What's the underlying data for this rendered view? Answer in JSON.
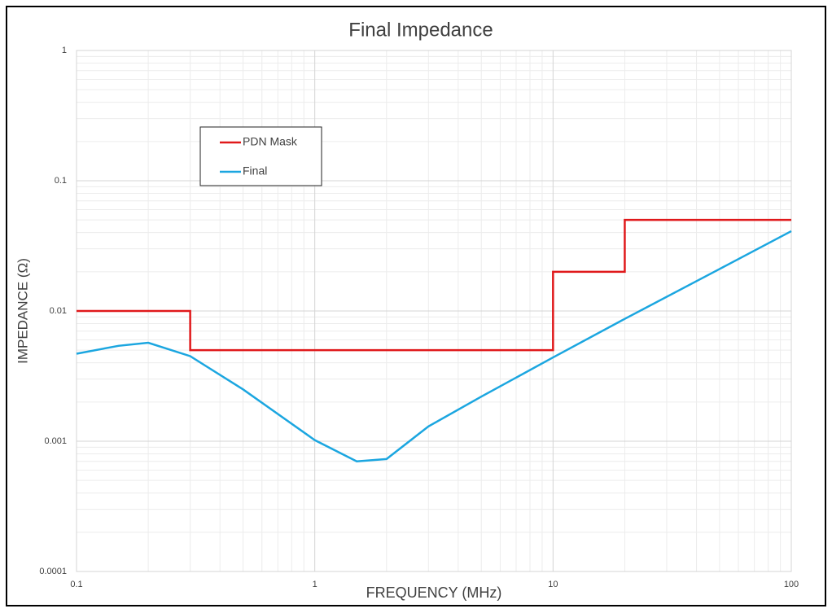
{
  "chart_data": {
    "type": "line",
    "title": "Final Impedance",
    "x_label": "FREQUENCY (MHz)",
    "y_label": "IMPEDANCE (Ω)",
    "x_scale": "log",
    "y_scale": "log",
    "xlim": [
      0.1,
      100
    ],
    "xticks": [
      0.1,
      1,
      10,
      100
    ],
    "ylim": [
      0.0001,
      1
    ],
    "yticks": [
      0.0001,
      0.001,
      0.01,
      0.1,
      1
    ],
    "grid": true,
    "minor_grid": true,
    "legend": "upper left",
    "series": [
      {
        "name": "PDN Mask",
        "color": "#e0191b",
        "x": [
          0.1,
          0.3,
          0.3,
          10,
          10,
          20,
          20,
          100
        ],
        "values": [
          0.01,
          0.01,
          0.005,
          0.005,
          0.02,
          0.02,
          0.05,
          0.05
        ]
      },
      {
        "name": "Final",
        "color": "#1ba6e0",
        "x": [
          0.1,
          0.15,
          0.2,
          0.3,
          0.5,
          1,
          1.5,
          2,
          3,
          5,
          10,
          20,
          50,
          100
        ],
        "values": [
          0.0047,
          0.0054,
          0.0057,
          0.0045,
          0.0025,
          0.00102,
          0.0007,
          0.00073,
          0.0013,
          0.0022,
          0.0044,
          0.0087,
          0.021,
          0.041
        ]
      }
    ]
  }
}
